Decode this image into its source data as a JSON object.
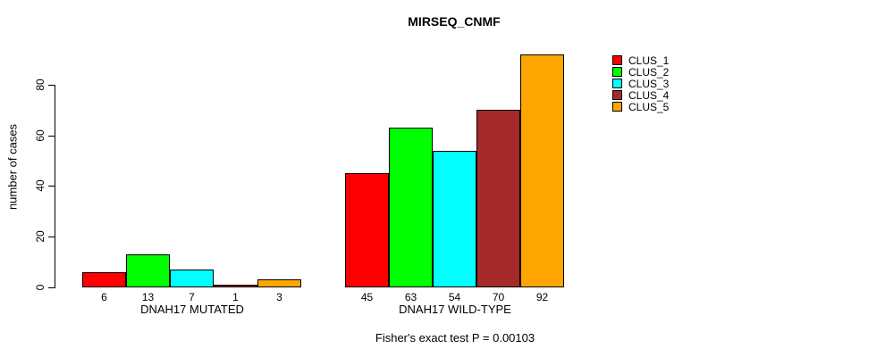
{
  "chart_data": {
    "type": "bar",
    "title": "MIRSEQ_CNMF",
    "ylabel": "number of cases",
    "xlabel": "",
    "categories": [
      "DNAH17 MUTATED",
      "DNAH17 WILD-TYPE"
    ],
    "series": [
      {
        "name": "CLUS_1",
        "color": "#ff0000",
        "values": [
          6,
          45
        ]
      },
      {
        "name": "CLUS_2",
        "color": "#00ff00",
        "values": [
          13,
          63
        ]
      },
      {
        "name": "CLUS_3",
        "color": "#00ffff",
        "values": [
          7,
          54
        ]
      },
      {
        "name": "CLUS_4",
        "color": "#a52a2a",
        "values": [
          1,
          70
        ]
      },
      {
        "name": "CLUS_5",
        "color": "#ffa500",
        "values": [
          3,
          92
        ]
      }
    ],
    "bar_value_labels": [
      [
        "6",
        "13",
        "7",
        "1",
        "3"
      ],
      [
        "45",
        "63",
        "54",
        "70",
        "92"
      ]
    ],
    "yticks": [
      0,
      20,
      40,
      60,
      80
    ],
    "ylim": [
      0,
      92
    ],
    "grid": false,
    "legend_position": "right",
    "annotation": "Fisher's exact test P = 0.00103"
  }
}
